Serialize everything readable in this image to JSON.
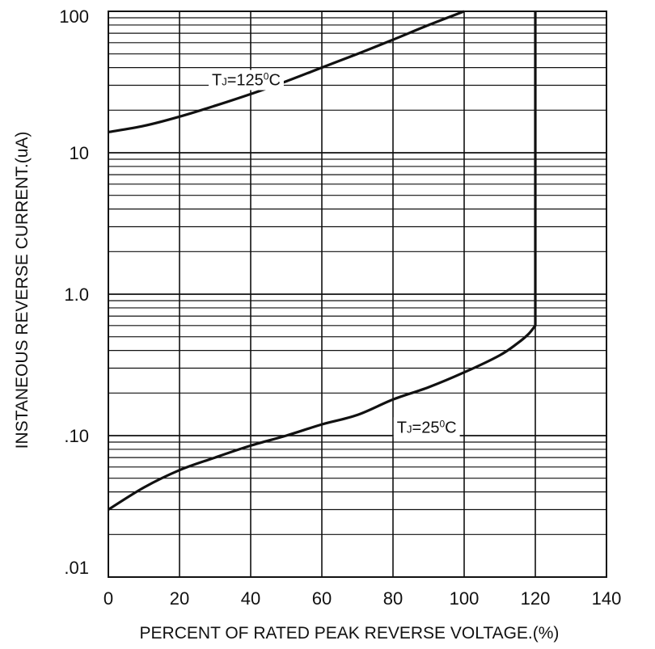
{
  "chart_data": {
    "type": "line",
    "title": "",
    "xlabel": "PERCENT OF RATED PEAK REVERSE VOLTAGE.(%)",
    "ylabel": "INSTANEOUS REVERSE CURRENT.(uA)",
    "xlim": [
      0,
      140
    ],
    "ylim": [
      0.01,
      100
    ],
    "y_scale": "log",
    "grid": true,
    "x_ticks": [
      "0",
      "20",
      "40",
      "60",
      "80",
      "100",
      "120",
      "140"
    ],
    "y_ticks": [
      ".01",
      ".10",
      "1.0",
      "10",
      "100"
    ],
    "y_tick_values": [
      0.01,
      0.1,
      1,
      10,
      100
    ],
    "series": [
      {
        "label_prefix": "T",
        "label_sub": "J",
        "label_mid": "=125",
        "label_sup": "0",
        "label_suffix": "C",
        "x": [
          0,
          10,
          20,
          30,
          40,
          50,
          60,
          70,
          80,
          90,
          100
        ],
        "y": [
          14,
          15.5,
          18,
          21.5,
          26,
          32,
          40,
          50,
          63,
          80,
          100
        ]
      },
      {
        "label_prefix": "T",
        "label_sub": "J",
        "label_mid": "=25",
        "label_sup": "0",
        "label_suffix": "C",
        "x": [
          0,
          10,
          20,
          30,
          40,
          50,
          60,
          70,
          80,
          90,
          100,
          110,
          115,
          118,
          120,
          120,
          120
        ],
        "y": [
          0.03,
          0.043,
          0.057,
          0.07,
          0.085,
          0.1,
          0.12,
          0.14,
          0.18,
          0.22,
          0.28,
          0.37,
          0.45,
          0.52,
          0.6,
          5,
          100
        ]
      }
    ],
    "line_color": "#111111",
    "grid_color": "#111111"
  }
}
